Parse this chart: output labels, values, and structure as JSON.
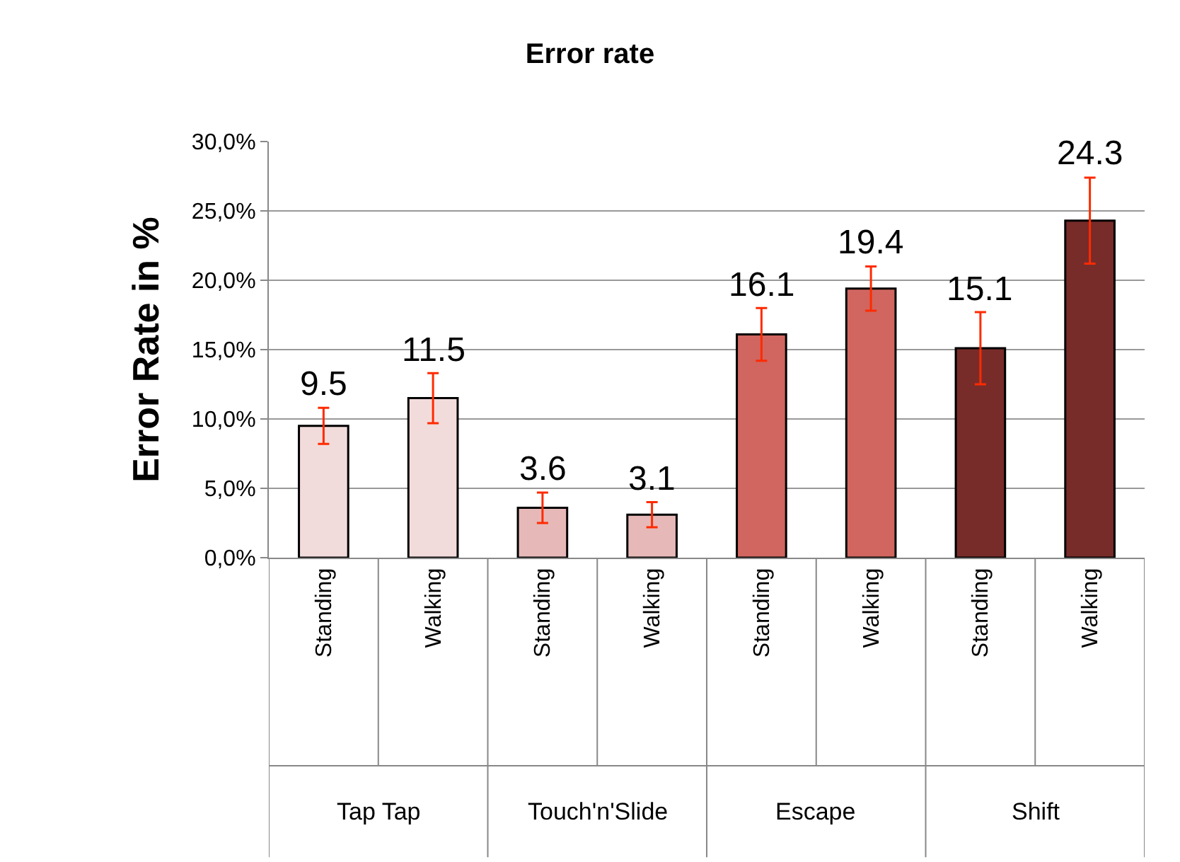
{
  "chart_data": {
    "type": "bar",
    "title": "Error rate",
    "ylabel": "Error Rate in %",
    "categories": [
      "Standing",
      "Walking",
      "Standing",
      "Walking",
      "Standing",
      "Walking",
      "Standing",
      "Walking"
    ],
    "values": [
      9.5,
      11.5,
      3.6,
      3.1,
      16.1,
      19.4,
      15.1,
      24.3
    ],
    "colors": [
      "#f2dcdb",
      "#f2dcdb",
      "#e6b9b8",
      "#e6b9b8",
      "#d0665f",
      "#d0665f",
      "#772c2a",
      "#772c2a"
    ],
    "errors": [
      1.3,
      1.8,
      1.1,
      0.9,
      1.9,
      1.6,
      2.6,
      3.1
    ],
    "data_labels": true,
    "ylim": [
      0,
      30
    ],
    "yticks": [
      {
        "value": 0,
        "label": "0,0%"
      },
      {
        "value": 5,
        "label": "5,0%"
      },
      {
        "value": 10,
        "label": "10,0%"
      },
      {
        "value": 15,
        "label": "15,0%"
      },
      {
        "value": 20,
        "label": "20,0%"
      },
      {
        "value": 25,
        "label": "25,0%"
      },
      {
        "value": 30,
        "label": "30,0%"
      }
    ],
    "grid": "y",
    "annotations": [
      "Tap Tap",
      "Touch'n'Slide",
      "Escape",
      "Shift"
    ]
  }
}
